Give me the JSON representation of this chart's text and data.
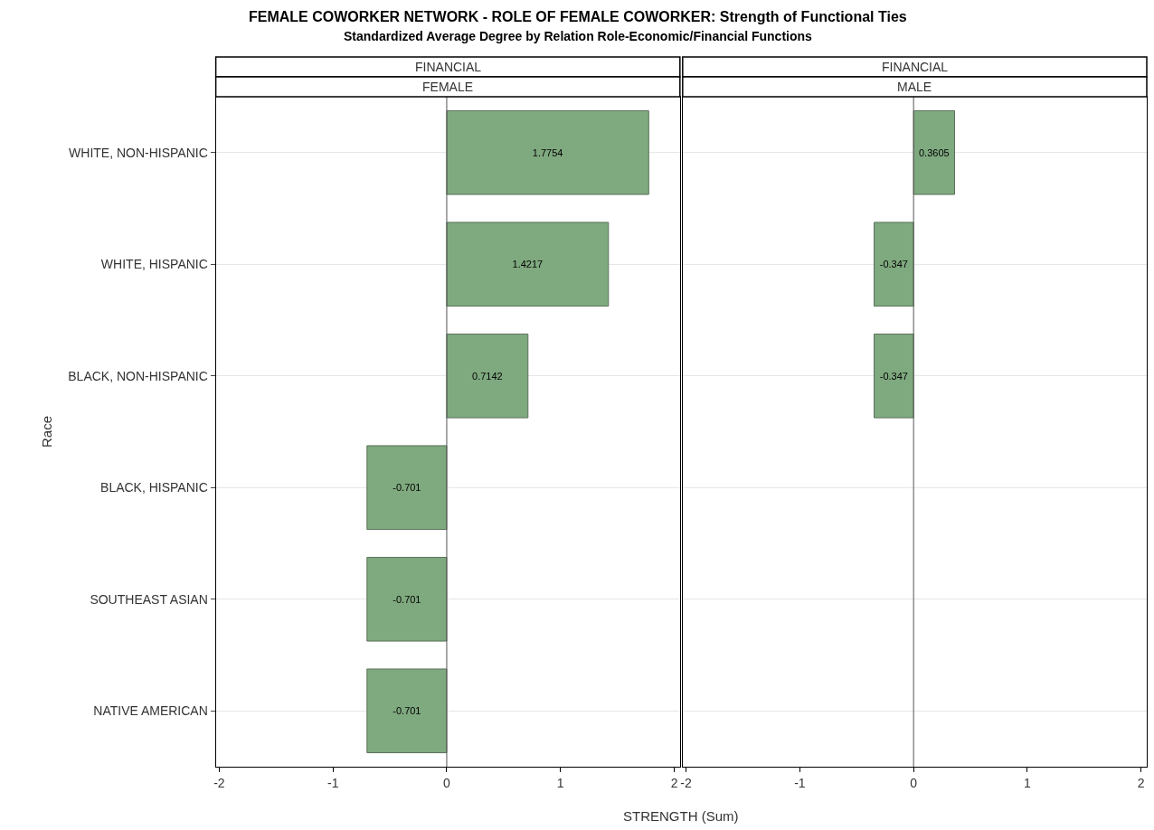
{
  "chart_data": [
    {
      "type": "bar",
      "orientation": "horizontal",
      "title": "FEMALE COWORKER NETWORK - ROLE OF FEMALE COWORKER: Strength of Functional Ties",
      "subtitle": "Standardized Average Degree by Relation Role-Economic/Financial Functions",
      "xlabel": "STRENGTH (Sum)",
      "ylabel": "Race",
      "annotations": [
        "FINANCIAL",
        "FEMALE"
      ],
      "categories": [
        "WHITE, NON-HISPANIC",
        "WHITE, HISPANIC",
        "BLACK, NON-HISPANIC",
        "BLACK, HISPANIC",
        "SOUTHEAST ASIAN",
        "NATIVE AMERICAN"
      ],
      "values": [
        1.7754,
        1.4217,
        0.7142,
        -0.701,
        -0.701,
        -0.701
      ],
      "color": "#7fa97f",
      "xlim": [
        -2.03,
        2.05
      ],
      "xticks": [
        -2,
        -1,
        0,
        1,
        2
      ],
      "grid": "y",
      "data_labels": true,
      "ref_lines": [
        {
          "axis": "x",
          "value": 0,
          "color": "#555555"
        }
      ]
    },
    {
      "type": "bar",
      "orientation": "horizontal",
      "annotations": [
        "FINANCIAL",
        "MALE"
      ],
      "categories": [
        "WHITE, NON-HISPANIC",
        "WHITE, HISPANIC",
        "BLACK, NON-HISPANIC",
        "BLACK, HISPANIC",
        "SOUTHEAST ASIAN",
        "NATIVE AMERICAN"
      ],
      "values": [
        0.3605,
        -0.347,
        -0.347,
        null,
        null,
        null
      ],
      "color": "#7fa97f",
      "xlim": [
        -2.03,
        2.05
      ],
      "xticks": [
        -2,
        -1,
        0,
        1,
        2
      ],
      "grid": "y",
      "data_labels": true,
      "tick_labels": "x",
      "ref_lines": [
        {
          "axis": "x",
          "value": 0,
          "color": "#555555"
        }
      ]
    }
  ]
}
